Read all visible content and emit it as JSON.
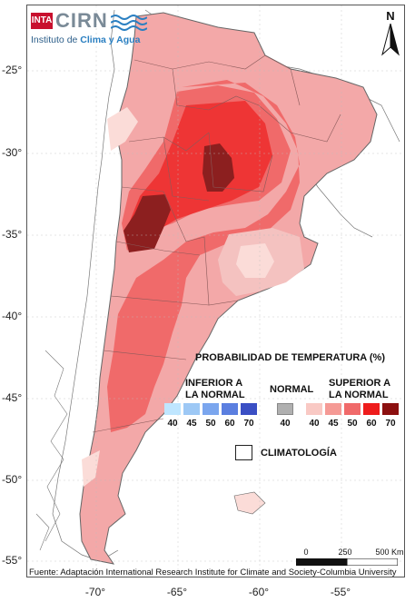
{
  "logo": {
    "inta": "INTA",
    "cirn": "CIRN",
    "subtitle_pre": "Instituto de ",
    "subtitle_highlight": "Clima y Agua"
  },
  "north_arrow": {
    "label": "N"
  },
  "axes": {
    "lat_ticks": [
      "-25°",
      "-30°",
      "-35°",
      "-40°",
      "-45°",
      "-50°",
      "-55°"
    ],
    "lon_ticks": [
      "-70°",
      "-65°",
      "-60°",
      "-55°"
    ]
  },
  "legend": {
    "title": "PROBABILIDAD DE TEMPERATURA (%)",
    "below": {
      "heading": "INFERIOR A\nLA NORMAL",
      "values": [
        "40",
        "45",
        "50",
        "60",
        "70"
      ],
      "colors": [
        "#bfe6ff",
        "#9dc8f5",
        "#7ba6ee",
        "#5b7fe0",
        "#3a4fc4"
      ]
    },
    "normal": {
      "heading": "NORMAL",
      "values": [
        "40"
      ],
      "colors": [
        "#b0b0b0"
      ]
    },
    "above": {
      "heading": "SUPERIOR A\nLA NORMAL",
      "values": [
        "40",
        "45",
        "50",
        "60",
        "70"
      ],
      "colors": [
        "#f9c9c4",
        "#f59a95",
        "#f06a6a",
        "#ee1c1c",
        "#8c1010"
      ]
    },
    "climatology_label": "CLIMATOLOGÍA"
  },
  "scale_bar": {
    "labels": [
      "0",
      "250",
      "500 Km"
    ]
  },
  "source": "Fuente: Adaptación International Research Institute for Climate and Society-Columbia University"
}
